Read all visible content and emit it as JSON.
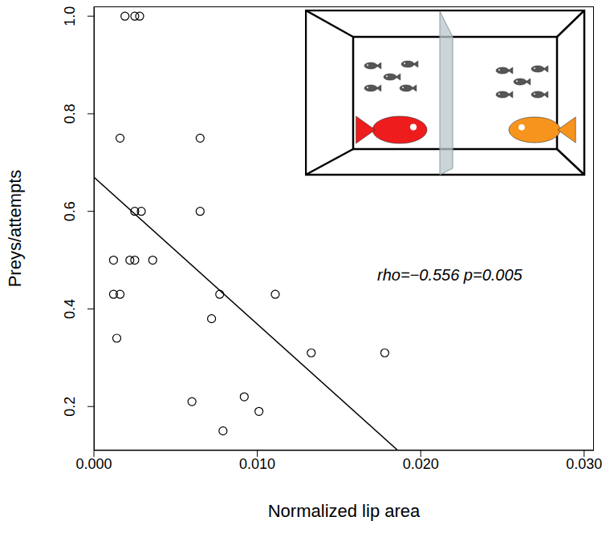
{
  "chart_data": {
    "type": "scatter",
    "x_label": "Normalized lip area",
    "y_label": "Preys/attempts",
    "annotation": "rho=−0.556 p=0.005",
    "x": [
      0.0019,
      0.0025,
      0.0028,
      0.0016,
      0.0065,
      0.0025,
      0.0029,
      0.0065,
      0.0012,
      0.0022,
      0.0025,
      0.0036,
      0.0012,
      0.0016,
      0.0077,
      0.0111,
      0.0072,
      0.0014,
      0.0133,
      0.0178,
      0.006,
      0.0092,
      0.0101,
      0.0079
    ],
    "values": [
      1.0,
      1.0,
      1.0,
      0.75,
      0.75,
      0.6,
      0.6,
      0.6,
      0.5,
      0.5,
      0.5,
      0.5,
      0.43,
      0.43,
      0.43,
      0.43,
      0.38,
      0.34,
      0.31,
      0.31,
      0.21,
      0.22,
      0.19,
      0.15
    ],
    "color": "#000000",
    "marker": "open_circle",
    "fit_line": {
      "x": [
        0,
        0.0186
      ],
      "y": [
        0.67,
        0.11
      ]
    },
    "xlim": [
      0,
      0.0306
    ],
    "ylim": [
      0.11,
      1.02
    ],
    "xticks": [
      {
        "value": 0,
        "label": "0.000"
      },
      {
        "value": 0.01,
        "label": "0.010"
      },
      {
        "value": 0.02,
        "label": "0.020"
      },
      {
        "value": 0.03,
        "label": "0.030"
      }
    ],
    "yticks": [
      0.2,
      0.4,
      0.6,
      0.8,
      {
        "value": 1.0,
        "label": "1.0"
      }
    ],
    "grid": false
  }
}
